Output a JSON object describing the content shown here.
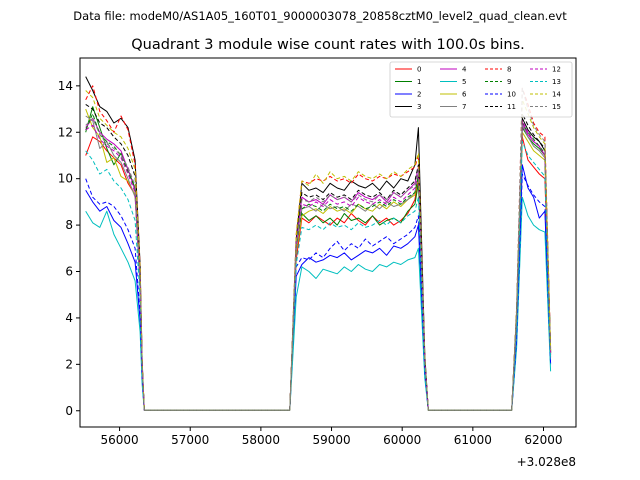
{
  "header": {
    "datafile": "Data file: modeM0/AS1A05_160T01_9000003078_20858cztM0_level2_quad_clean.evt"
  },
  "chart_data": {
    "type": "line",
    "title": "Quadrant 3 module wise count rates with 100.0s bins.",
    "xlabel": "",
    "ylabel": "",
    "x_offset_label": "+3.028e8",
    "xlim": [
      55440,
      62460
    ],
    "ylim": [
      -0.7,
      15.2
    ],
    "x_ticks": [
      56000,
      57000,
      58000,
      59000,
      60000,
      61000,
      62000
    ],
    "x_tick_labels": [
      "56000",
      "57000",
      "58000",
      "59000",
      "60000",
      "61000",
      "62000"
    ],
    "y_ticks": [
      0,
      2,
      4,
      6,
      8,
      10,
      12,
      14
    ],
    "y_tick_labels": [
      "0",
      "2",
      "4",
      "6",
      "8",
      "10",
      "12",
      "14"
    ],
    "grid": false,
    "legend_position": "top-right",
    "segments": [
      {
        "name": "A",
        "x": [
          55520,
          55620,
          55720,
          55820,
          55920,
          56020,
          56120,
          56220,
          56290,
          56320,
          56350
        ]
      },
      {
        "name": "B",
        "x": [
          58410,
          58500,
          58580,
          58680,
          58780,
          58880,
          58980,
          59080,
          59180,
          59280,
          59380,
          59480,
          59580,
          59680,
          59780,
          59880,
          59980,
          60080,
          60180,
          60230,
          60320,
          60370
        ]
      },
      {
        "name": "C",
        "x": [
          61550,
          61620,
          61700,
          61780,
          61860,
          61940,
          62020,
          62100
        ]
      }
    ],
    "gap_points": [
      [
        56350,
        0.02
      ],
      [
        58410,
        0.02
      ],
      [
        60370,
        0.02
      ],
      [
        61550,
        0.02
      ]
    ],
    "series": [
      {
        "name": "0",
        "color": "#ff0000",
        "dash": "solid",
        "A": [
          11.0,
          11.8,
          11.6,
          11.2,
          10.9,
          10.6,
          9.8,
          9.3,
          5.5,
          1.8,
          0.02
        ],
        "B": [
          0.02,
          6.5,
          8.3,
          8.1,
          8.4,
          8.2,
          8.0,
          8.3,
          8.1,
          8.5,
          8.2,
          8.0,
          8.4,
          8.1,
          8.3,
          8.0,
          8.2,
          8.5,
          9.1,
          10.0,
          2.0,
          0.02
        ],
        "C": [
          0.02,
          3.8,
          11.8,
          10.8,
          10.5,
          10.2,
          10.0,
          2.3
        ]
      },
      {
        "name": "1",
        "color": "#008000",
        "dash": "solid",
        "A": [
          12.0,
          13.1,
          12.2,
          11.3,
          10.6,
          11.1,
          10.4,
          9.6,
          5.3,
          1.7,
          0.02
        ],
        "B": [
          0.02,
          6.9,
          8.5,
          8.2,
          8.4,
          8.1,
          8.3,
          8.0,
          8.5,
          8.2,
          8.3,
          8.1,
          8.4,
          8.0,
          8.2,
          8.3,
          8.1,
          8.6,
          8.9,
          9.8,
          2.1,
          0.02
        ],
        "C": [
          0.02,
          4.1,
          12.2,
          11.8,
          11.5,
          11.3,
          11.0,
          2.5
        ]
      },
      {
        "name": "2",
        "color": "#0000ff",
        "dash": "solid",
        "A": [
          9.5,
          9.0,
          8.6,
          8.8,
          8.2,
          7.9,
          7.2,
          6.4,
          3.9,
          1.3,
          0.02
        ],
        "B": [
          0.02,
          5.8,
          6.3,
          6.6,
          6.4,
          6.5,
          6.7,
          6.6,
          6.8,
          6.5,
          6.7,
          6.9,
          6.8,
          7.0,
          6.7,
          7.1,
          7.0,
          7.2,
          7.5,
          8.0,
          1.6,
          0.02
        ],
        "C": [
          0.02,
          3.0,
          10.6,
          9.6,
          9.2,
          8.3,
          8.6,
          2.0
        ]
      },
      {
        "name": "3",
        "color": "#000000",
        "dash": "solid",
        "A": [
          14.4,
          13.8,
          13.1,
          12.9,
          12.4,
          12.6,
          12.2,
          10.8,
          6.3,
          2.1,
          0.02
        ],
        "B": [
          0.02,
          7.4,
          9.8,
          9.5,
          9.6,
          9.4,
          9.8,
          9.6,
          9.5,
          9.9,
          9.7,
          9.6,
          9.8,
          9.5,
          9.9,
          9.6,
          10.0,
          9.9,
          10.6,
          12.2,
          2.4,
          0.02
        ],
        "C": [
          0.02,
          4.3,
          12.6,
          12.1,
          11.8,
          11.6,
          11.2,
          2.6
        ]
      },
      {
        "name": "4",
        "color": "#bf00bf",
        "dash": "solid",
        "A": [
          12.2,
          12.6,
          12.0,
          11.7,
          11.5,
          11.2,
          10.4,
          9.5,
          5.7,
          1.9,
          0.02
        ],
        "B": [
          0.02,
          7.2,
          9.2,
          9.0,
          9.1,
          8.9,
          9.3,
          9.1,
          9.2,
          9.0,
          9.4,
          9.2,
          9.1,
          9.3,
          9.0,
          9.4,
          9.2,
          9.5,
          9.8,
          10.5,
          2.2,
          0.02
        ],
        "C": [
          0.02,
          4.0,
          12.4,
          11.9,
          11.6,
          11.4,
          11.0,
          2.4
        ]
      },
      {
        "name": "5",
        "color": "#00bfbf",
        "dash": "solid",
        "A": [
          8.6,
          8.1,
          7.9,
          8.6,
          7.6,
          7.0,
          6.4,
          5.6,
          3.4,
          1.1,
          0.02
        ],
        "B": [
          0.02,
          4.9,
          6.2,
          6.0,
          5.7,
          6.1,
          6.0,
          5.9,
          6.2,
          6.0,
          6.3,
          6.1,
          6.0,
          6.3,
          6.2,
          6.4,
          6.3,
          6.5,
          6.6,
          7.0,
          1.4,
          0.02
        ],
        "C": [
          0.02,
          2.7,
          9.2,
          8.4,
          8.0,
          7.8,
          7.7,
          1.7
        ]
      },
      {
        "name": "6",
        "color": "#bfbf00",
        "dash": "solid",
        "A": [
          13.0,
          12.2,
          11.8,
          10.7,
          10.9,
          10.1,
          9.9,
          9.3,
          5.5,
          1.8,
          0.02
        ],
        "B": [
          0.02,
          6.8,
          8.4,
          8.6,
          8.7,
          8.5,
          8.8,
          8.6,
          8.7,
          8.5,
          8.9,
          8.7,
          8.6,
          8.9,
          8.7,
          9.0,
          8.8,
          9.1,
          9.3,
          10.1,
          2.0,
          0.02
        ],
        "C": [
          0.02,
          4.0,
          12.0,
          11.6,
          11.2,
          11.0,
          10.8,
          2.4
        ]
      },
      {
        "name": "7",
        "color": "#808080",
        "dash": "solid",
        "A": [
          12.7,
          12.5,
          11.3,
          11.6,
          11.0,
          10.7,
          10.0,
          9.2,
          5.4,
          1.8,
          0.02
        ],
        "B": [
          0.02,
          6.9,
          8.7,
          8.8,
          8.6,
          8.9,
          8.7,
          8.8,
          8.6,
          8.9,
          8.8,
          8.6,
          8.9,
          8.7,
          9.0,
          8.8,
          8.9,
          9.1,
          9.4,
          10.2,
          2.1,
          0.02
        ],
        "C": [
          0.02,
          4.1,
          12.3,
          11.8,
          11.4,
          11.2,
          10.9,
          2.5
        ]
      },
      {
        "name": "8",
        "color": "#ff0000",
        "dash": "dashed",
        "A": [
          13.4,
          14.0,
          12.9,
          12.5,
          12.0,
          12.7,
          12.1,
          10.6,
          6.2,
          2.0,
          0.02
        ],
        "B": [
          0.02,
          7.6,
          9.9,
          9.8,
          10.0,
          9.9,
          10.1,
          9.9,
          10.0,
          9.8,
          10.2,
          10.0,
          9.9,
          10.1,
          10.0,
          10.2,
          10.1,
          10.3,
          10.5,
          11.0,
          2.3,
          0.02
        ],
        "C": [
          0.02,
          4.4,
          13.9,
          13.2,
          12.4,
          12.0,
          11.8,
          2.7
        ]
      },
      {
        "name": "9",
        "color": "#008000",
        "dash": "dashed",
        "A": [
          12.1,
          12.8,
          11.9,
          11.6,
          11.4,
          11.0,
          10.3,
          9.6,
          5.6,
          1.9,
          0.02
        ],
        "B": [
          0.02,
          7.0,
          8.7,
          8.9,
          8.8,
          8.6,
          8.9,
          8.7,
          8.8,
          8.6,
          8.9,
          8.7,
          8.8,
          9.0,
          8.8,
          9.1,
          8.9,
          9.2,
          9.4,
          10.1,
          2.1,
          0.02
        ],
        "C": [
          0.02,
          4.1,
          12.4,
          12.0,
          11.7,
          11.4,
          11.1,
          2.5
        ]
      },
      {
        "name": "10",
        "color": "#0000ff",
        "dash": "dashed",
        "A": [
          10.0,
          9.2,
          8.9,
          9.0,
          8.8,
          8.4,
          7.8,
          7.0,
          4.2,
          1.4,
          0.02
        ],
        "B": [
          0.02,
          6.2,
          6.6,
          6.5,
          6.8,
          6.6,
          7.0,
          7.3,
          6.9,
          7.2,
          7.0,
          7.4,
          7.1,
          7.3,
          7.5,
          7.2,
          7.4,
          7.6,
          7.9,
          8.4,
          1.7,
          0.02
        ],
        "C": [
          0.02,
          3.1,
          10.2,
          9.7,
          9.3,
          9.0,
          8.8,
          2.0
        ]
      },
      {
        "name": "11",
        "color": "#000000",
        "dash": "dashed",
        "A": [
          13.2,
          13.0,
          12.4,
          12.2,
          11.8,
          11.5,
          11.0,
          10.1,
          5.9,
          2.0,
          0.02
        ],
        "B": [
          0.02,
          7.3,
          9.4,
          9.2,
          9.3,
          9.1,
          9.4,
          9.2,
          9.3,
          9.1,
          9.5,
          9.3,
          9.2,
          9.4,
          9.1,
          9.5,
          9.3,
          9.6,
          9.9,
          10.6,
          2.2,
          0.02
        ],
        "C": [
          0.02,
          4.2,
          12.8,
          12.3,
          11.9,
          11.6,
          11.3,
          2.5
        ]
      },
      {
        "name": "12",
        "color": "#bf00bf",
        "dash": "dashed",
        "A": [
          12.1,
          12.3,
          11.7,
          11.4,
          11.2,
          10.9,
          10.2,
          9.4,
          5.6,
          1.9,
          0.02
        ],
        "B": [
          0.02,
          7.1,
          8.9,
          8.8,
          9.0,
          8.8,
          9.1,
          8.9,
          9.0,
          8.8,
          9.2,
          9.0,
          8.9,
          9.1,
          8.9,
          9.2,
          9.0,
          9.3,
          9.6,
          10.3,
          2.1,
          0.02
        ],
        "C": [
          0.02,
          4.1,
          12.5,
          12.0,
          11.6,
          11.4,
          11.0,
          2.4
        ]
      },
      {
        "name": "13",
        "color": "#00bfbf",
        "dash": "dashed",
        "A": [
          11.2,
          10.8,
          10.2,
          10.4,
          9.9,
          9.6,
          9.1,
          8.2,
          4.9,
          1.6,
          0.02
        ],
        "B": [
          0.02,
          6.3,
          7.9,
          7.8,
          8.0,
          7.8,
          8.1,
          7.9,
          8.0,
          7.8,
          8.1,
          7.9,
          8.0,
          8.2,
          8.0,
          8.3,
          8.1,
          8.4,
          8.6,
          9.2,
          1.9,
          0.02
        ],
        "C": [
          0.02,
          3.7,
          11.6,
          11.0,
          10.7,
          10.4,
          10.1,
          2.2
        ]
      },
      {
        "name": "14",
        "color": "#bfbf00",
        "dash": "dashed",
        "A": [
          13.8,
          13.5,
          12.6,
          12.3,
          12.0,
          11.8,
          11.3,
          10.4,
          6.1,
          2.0,
          0.02
        ],
        "B": [
          0.02,
          7.5,
          9.9,
          9.7,
          10.2,
          9.8,
          10.3,
          10.0,
          10.1,
          9.9,
          10.3,
          10.1,
          10.0,
          10.2,
          10.0,
          10.3,
          10.1,
          10.4,
          10.6,
          11.1,
          2.3,
          0.02
        ],
        "C": [
          0.02,
          4.4,
          13.4,
          12.8,
          12.2,
          11.8,
          11.5,
          2.6
        ]
      },
      {
        "name": "15",
        "color": "#808080",
        "dash": "dashed",
        "A": [
          12.3,
          12.6,
          11.9,
          11.5,
          11.3,
          11.0,
          10.5,
          9.7,
          5.7,
          1.9,
          0.02
        ],
        "B": [
          0.02,
          7.1,
          9.1,
          9.0,
          9.2,
          9.0,
          9.3,
          9.1,
          9.2,
          9.0,
          9.3,
          9.1,
          9.0,
          9.3,
          9.1,
          9.4,
          9.2,
          9.5,
          9.7,
          10.4,
          2.2,
          0.02
        ],
        "C": [
          0.02,
          4.2,
          13.9,
          13.0,
          12.3,
          11.9,
          11.6,
          2.5
        ]
      }
    ]
  }
}
